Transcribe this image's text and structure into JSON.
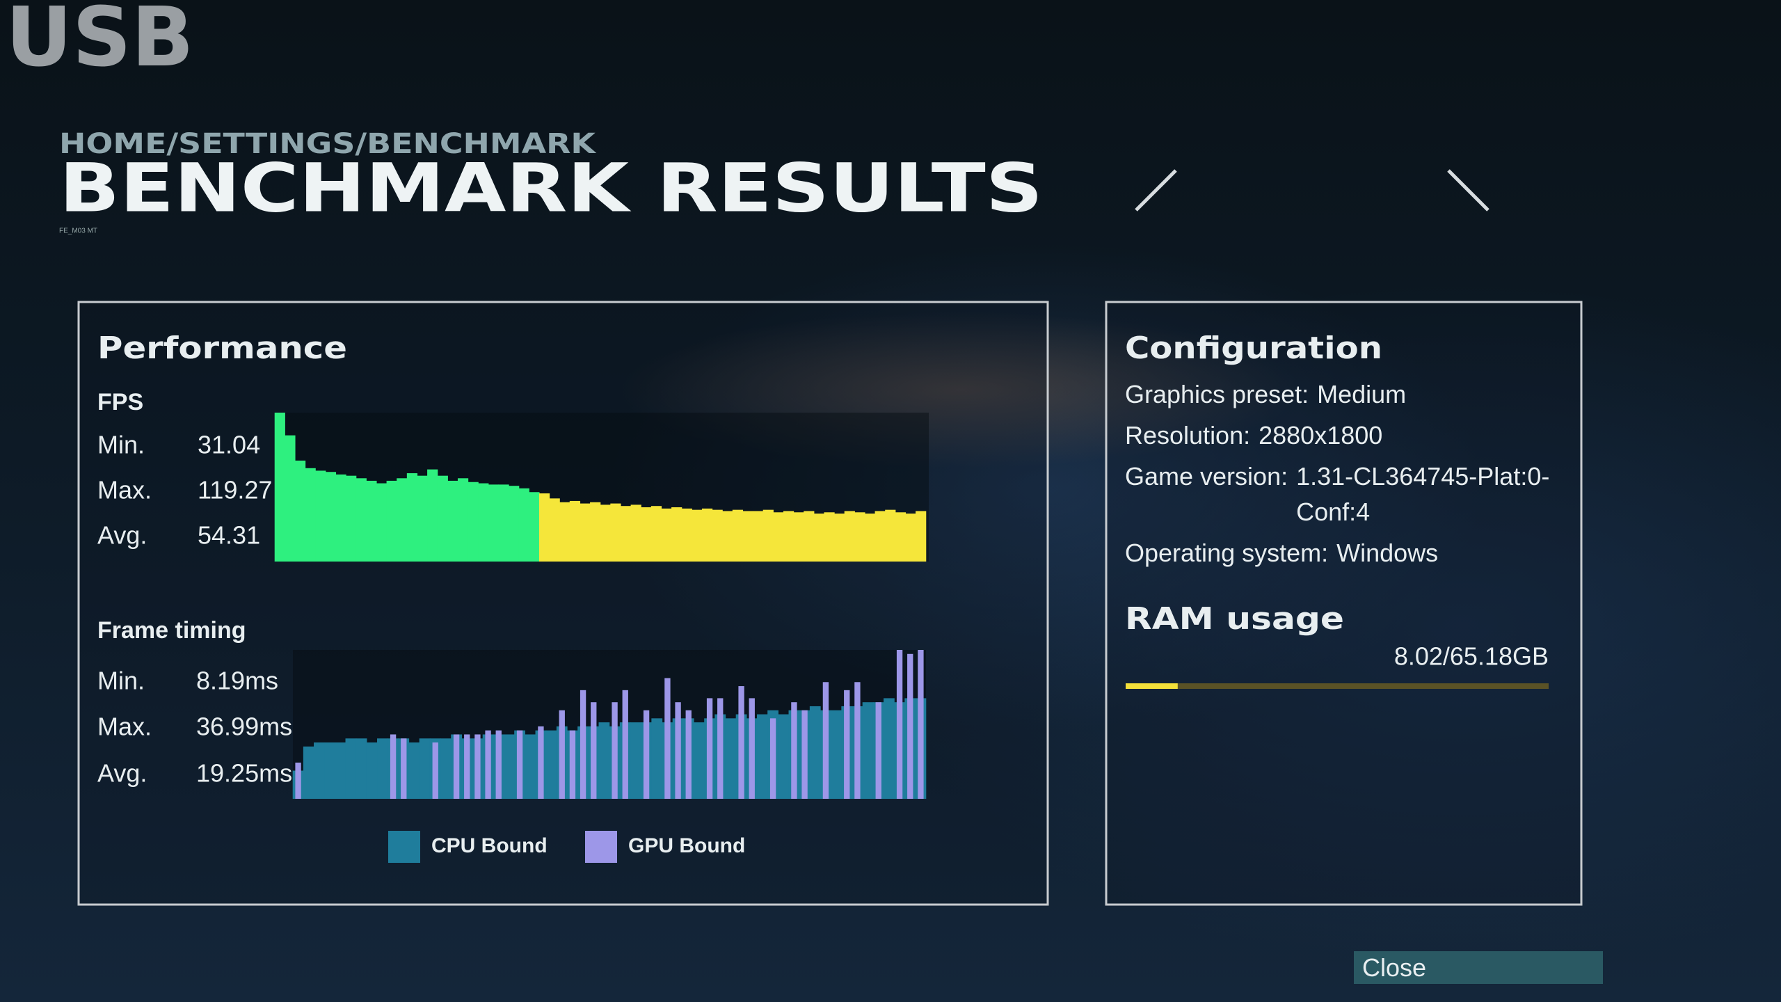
{
  "watermark": "USB",
  "header": {
    "breadcrumb": "HOME/SETTINGS/BENCHMARK",
    "title": "BENCHMARK RESULTS",
    "screen_id": "FE_M03 MT"
  },
  "performance": {
    "title": "Performance",
    "fps": {
      "title": "FPS",
      "stats": [
        {
          "label": "Min.",
          "value": "31.04"
        },
        {
          "label": "Max.",
          "value": "119.27"
        },
        {
          "label": "Avg.",
          "value": "54.31"
        }
      ],
      "chart": {
        "type": "bar",
        "series": [
          {
            "color": "#2ef07f",
            "values": [
              118,
              100,
              80,
              74,
              72,
              71,
              69,
              68,
              66,
              64,
              62,
              64,
              66,
              70,
              68,
              73,
              68,
              64,
              66,
              63,
              62,
              61,
              61,
              60,
              58,
              55,
              null,
              null,
              null,
              null,
              null,
              null,
              null,
              null,
              null,
              null,
              null,
              null,
              null,
              null,
              null,
              null,
              null,
              null,
              null,
              null,
              null,
              null,
              null,
              null,
              null,
              null,
              null,
              null,
              null,
              null,
              null,
              null,
              null,
              null,
              null,
              null,
              null,
              null
            ]
          },
          {
            "color": "#f5e63a",
            "values": [
              null,
              null,
              null,
              null,
              null,
              null,
              null,
              null,
              null,
              null,
              null,
              null,
              null,
              null,
              null,
              null,
              null,
              null,
              null,
              null,
              null,
              null,
              null,
              null,
              null,
              null,
              54,
              50,
              47,
              48,
              46,
              47,
              45,
              46,
              44,
              45,
              43,
              44,
              42,
              43,
              42,
              41,
              42,
              41,
              40,
              41,
              40,
              40,
              41,
              39,
              40,
              39,
              40,
              38,
              39,
              38,
              40,
              39,
              38,
              40,
              41,
              39,
              38,
              40
            ]
          }
        ]
      }
    },
    "frame_timing": {
      "title": "Frame timing",
      "stats": [
        {
          "label": "Min.",
          "value": "8.19ms"
        },
        {
          "label": "Max.",
          "value": "36.99ms"
        },
        {
          "label": "Avg.",
          "value": "19.25ms"
        }
      ],
      "chart": {
        "type": "bar",
        "series": [
          {
            "name": "CPU Bound",
            "color": "#1f7d9c",
            "values": [
              7,
              13,
              14,
              14,
              14,
              15,
              15,
              14,
              15,
              15,
              15,
              14,
              15,
              15,
              15,
              16,
              15,
              15,
              16,
              16,
              16,
              17,
              16,
              17,
              17,
              18,
              17,
              18,
              18,
              19,
              18,
              19,
              19,
              19,
              20,
              19,
              20,
              20,
              19,
              20,
              21,
              20,
              21,
              20,
              21,
              22,
              21,
              22,
              22,
              23,
              22,
              22,
              23,
              23,
              24,
              24,
              25,
              24,
              25,
              25
            ]
          },
          {
            "name": "GPU Bound",
            "color": "#9d97e8",
            "values": [
              9,
              null,
              null,
              null,
              null,
              null,
              null,
              null,
              null,
              16,
              15,
              null,
              null,
              14,
              null,
              16,
              16,
              16,
              17,
              17,
              null,
              17,
              null,
              18,
              null,
              22,
              17,
              27,
              24,
              null,
              24,
              27,
              null,
              22,
              null,
              30,
              24,
              22,
              null,
              25,
              25,
              null,
              28,
              25,
              null,
              20,
              null,
              24,
              22,
              null,
              29,
              null,
              27,
              29,
              null,
              24,
              null,
              37,
              36,
              37
            ]
          }
        ]
      }
    }
  },
  "configuration": {
    "title": "Configuration",
    "items": [
      {
        "key": "Graphics preset:",
        "value": "Medium"
      },
      {
        "key": "Resolution:",
        "value": "2880x1800"
      },
      {
        "key": "Game version:",
        "value": "1.31-CL364745-Plat:0-Conf:4"
      },
      {
        "key": "Operating system:",
        "value": "Windows"
      }
    ]
  },
  "ram": {
    "title": "RAM usage",
    "label": "8.02/65.18GB",
    "used": 8.02,
    "total": 65.18
  },
  "close_button": "Close"
}
